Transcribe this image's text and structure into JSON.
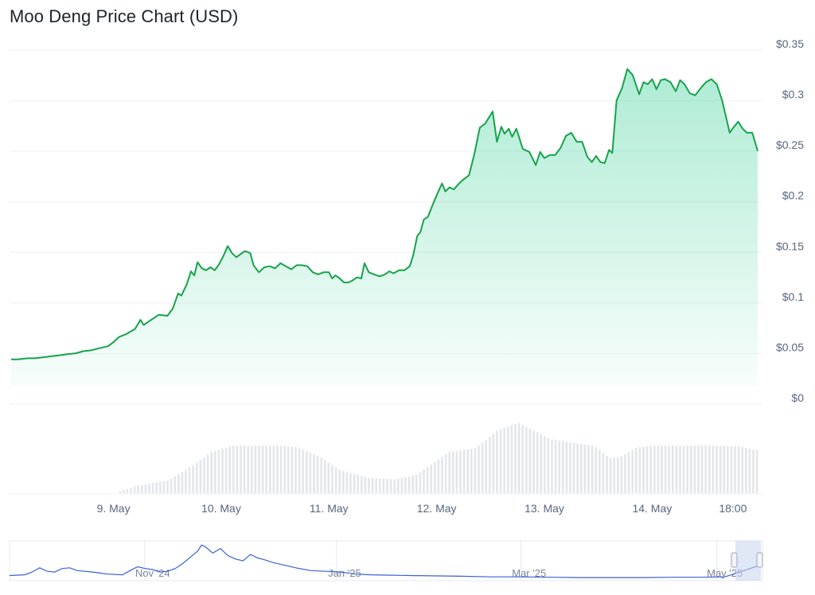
{
  "title": "Moo Deng Price Chart (USD)",
  "colors": {
    "price_line": "#16a34a",
    "area_top": "#16c784",
    "gridline": "#eef0f3",
    "volume_bar": "#e3e6ea",
    "navigator_line": "#3861d5",
    "navigator_handle": "#c7d3ee",
    "text": "#58667e"
  },
  "chart_data": [
    {
      "type": "area",
      "name": "price",
      "ylim": [
        0,
        0.35
      ],
      "y_ticks": [
        {
          "value": 0,
          "label": "$0"
        },
        {
          "value": 0.05,
          "label": "$0.05"
        },
        {
          "value": 0.1,
          "label": "$0.1"
        },
        {
          "value": 0.15,
          "label": "$0.15"
        },
        {
          "value": 0.2,
          "label": "$0.2"
        },
        {
          "value": 0.25,
          "label": "$0.25"
        },
        {
          "value": 0.3,
          "label": "$0.3"
        },
        {
          "value": 0.35,
          "label": "$0.35"
        }
      ],
      "x_ticks": [
        {
          "x": 9.0,
          "label": "9. May"
        },
        {
          "x": 10.0,
          "label": "10. May"
        },
        {
          "x": 11.0,
          "label": "11. May"
        },
        {
          "x": 12.0,
          "label": "12. May"
        },
        {
          "x": 13.0,
          "label": "13. May"
        },
        {
          "x": 14.0,
          "label": "14. May"
        },
        {
          "x": 14.75,
          "label": "18:00"
        }
      ],
      "xlim": [
        8.05,
        14.98
      ],
      "grid": true,
      "points": [
        [
          8.05,
          0.038
        ],
        [
          8.12,
          0.038
        ],
        [
          8.2,
          0.039
        ],
        [
          8.27,
          0.039
        ],
        [
          8.35,
          0.04
        ],
        [
          8.42,
          0.041
        ],
        [
          8.5,
          0.042
        ],
        [
          8.57,
          0.043
        ],
        [
          8.65,
          0.044
        ],
        [
          8.72,
          0.046
        ],
        [
          8.8,
          0.047
        ],
        [
          8.87,
          0.049
        ],
        [
          8.95,
          0.051
        ],
        [
          9.0,
          0.055
        ],
        [
          9.05,
          0.06
        ],
        [
          9.12,
          0.063
        ],
        [
          9.2,
          0.068
        ],
        [
          9.25,
          0.077
        ],
        [
          9.28,
          0.072
        ],
        [
          9.35,
          0.077
        ],
        [
          9.42,
          0.082
        ],
        [
          9.5,
          0.081
        ],
        [
          9.55,
          0.088
        ],
        [
          9.6,
          0.103
        ],
        [
          9.63,
          0.101
        ],
        [
          9.68,
          0.112
        ],
        [
          9.72,
          0.125
        ],
        [
          9.75,
          0.121
        ],
        [
          9.78,
          0.134
        ],
        [
          9.82,
          0.128
        ],
        [
          9.86,
          0.126
        ],
        [
          9.9,
          0.129
        ],
        [
          9.94,
          0.126
        ],
        [
          9.98,
          0.132
        ],
        [
          10.02,
          0.14
        ],
        [
          10.06,
          0.15
        ],
        [
          10.1,
          0.143
        ],
        [
          10.14,
          0.139
        ],
        [
          10.18,
          0.142
        ],
        [
          10.22,
          0.145
        ],
        [
          10.27,
          0.143
        ],
        [
          10.3,
          0.131
        ],
        [
          10.35,
          0.124
        ],
        [
          10.4,
          0.129
        ],
        [
          10.45,
          0.13
        ],
        [
          10.5,
          0.128
        ],
        [
          10.55,
          0.133
        ],
        [
          10.6,
          0.13
        ],
        [
          10.65,
          0.127
        ],
        [
          10.7,
          0.131
        ],
        [
          10.75,
          0.131
        ],
        [
          10.8,
          0.13
        ],
        [
          10.85,
          0.124
        ],
        [
          10.9,
          0.122
        ],
        [
          10.95,
          0.124
        ],
        [
          11.0,
          0.124
        ],
        [
          11.03,
          0.118
        ],
        [
          11.06,
          0.121
        ],
        [
          11.1,
          0.118
        ],
        [
          11.14,
          0.114
        ],
        [
          11.18,
          0.114
        ],
        [
          11.22,
          0.116
        ],
        [
          11.26,
          0.119
        ],
        [
          11.3,
          0.118
        ],
        [
          11.33,
          0.133
        ],
        [
          11.37,
          0.124
        ],
        [
          11.42,
          0.122
        ],
        [
          11.47,
          0.12
        ],
        [
          11.52,
          0.122
        ],
        [
          11.56,
          0.125
        ],
        [
          11.6,
          0.123
        ],
        [
          11.65,
          0.126
        ],
        [
          11.7,
          0.126
        ],
        [
          11.75,
          0.13
        ],
        [
          11.78,
          0.14
        ],
        [
          11.82,
          0.16
        ],
        [
          11.85,
          0.164
        ],
        [
          11.88,
          0.176
        ],
        [
          11.92,
          0.179
        ],
        [
          11.96,
          0.19
        ],
        [
          12.0,
          0.2
        ],
        [
          12.05,
          0.212
        ],
        [
          12.08,
          0.204
        ],
        [
          12.12,
          0.208
        ],
        [
          12.16,
          0.206
        ],
        [
          12.2,
          0.211
        ],
        [
          12.25,
          0.216
        ],
        [
          12.3,
          0.22
        ],
        [
          12.35,
          0.241
        ],
        [
          12.4,
          0.267
        ],
        [
          12.45,
          0.271
        ],
        [
          12.52,
          0.283
        ],
        [
          12.56,
          0.253
        ],
        [
          12.6,
          0.268
        ],
        [
          12.63,
          0.261
        ],
        [
          12.67,
          0.266
        ],
        [
          12.7,
          0.258
        ],
        [
          12.74,
          0.266
        ],
        [
          12.8,
          0.246
        ],
        [
          12.86,
          0.243
        ],
        [
          12.92,
          0.23
        ],
        [
          12.96,
          0.243
        ],
        [
          13.0,
          0.237
        ],
        [
          13.05,
          0.24
        ],
        [
          13.1,
          0.24
        ],
        [
          13.15,
          0.247
        ],
        [
          13.2,
          0.259
        ],
        [
          13.25,
          0.262
        ],
        [
          13.3,
          0.253
        ],
        [
          13.35,
          0.253
        ],
        [
          13.4,
          0.238
        ],
        [
          13.44,
          0.233
        ],
        [
          13.48,
          0.239
        ],
        [
          13.52,
          0.233
        ],
        [
          13.56,
          0.232
        ],
        [
          13.6,
          0.245
        ],
        [
          13.63,
          0.242
        ],
        [
          13.67,
          0.294
        ],
        [
          13.72,
          0.306
        ],
        [
          13.77,
          0.325
        ],
        [
          13.82,
          0.319
        ],
        [
          13.88,
          0.3
        ],
        [
          13.92,
          0.312
        ],
        [
          13.96,
          0.31
        ],
        [
          14.0,
          0.315
        ],
        [
          14.04,
          0.305
        ],
        [
          14.08,
          0.314
        ],
        [
          14.12,
          0.315
        ],
        [
          14.17,
          0.312
        ],
        [
          14.22,
          0.303
        ],
        [
          14.26,
          0.314
        ],
        [
          14.3,
          0.31
        ],
        [
          14.35,
          0.301
        ],
        [
          14.4,
          0.299
        ],
        [
          14.45,
          0.306
        ],
        [
          14.5,
          0.312
        ],
        [
          14.55,
          0.315
        ],
        [
          14.6,
          0.31
        ],
        [
          14.65,
          0.294
        ],
        [
          14.72,
          0.262
        ],
        [
          14.76,
          0.268
        ],
        [
          14.8,
          0.273
        ],
        [
          14.84,
          0.266
        ],
        [
          14.88,
          0.262
        ],
        [
          14.93,
          0.262
        ],
        [
          14.98,
          0.244
        ]
      ]
    },
    {
      "type": "bar",
      "name": "volume",
      "note": "relative heights, 0-1",
      "envelope": [
        [
          9.0,
          0.0
        ],
        [
          9.2,
          0.08
        ],
        [
          9.5,
          0.14
        ],
        [
          9.72,
          0.3
        ],
        [
          9.9,
          0.45
        ],
        [
          10.1,
          0.52
        ],
        [
          10.3,
          0.52
        ],
        [
          10.55,
          0.52
        ],
        [
          10.7,
          0.5
        ],
        [
          10.9,
          0.4
        ],
        [
          11.1,
          0.25
        ],
        [
          11.35,
          0.17
        ],
        [
          11.6,
          0.15
        ],
        [
          11.8,
          0.2
        ],
        [
          11.95,
          0.32
        ],
        [
          12.1,
          0.45
        ],
        [
          12.35,
          0.49
        ],
        [
          12.55,
          0.68
        ],
        [
          12.75,
          0.77
        ],
        [
          12.9,
          0.68
        ],
        [
          13.05,
          0.59
        ],
        [
          13.25,
          0.55
        ],
        [
          13.45,
          0.52
        ],
        [
          13.6,
          0.38
        ],
        [
          13.7,
          0.4
        ],
        [
          13.85,
          0.5
        ],
        [
          14.0,
          0.52
        ],
        [
          14.3,
          0.52
        ],
        [
          14.6,
          0.52
        ],
        [
          14.8,
          0.51
        ],
        [
          14.95,
          0.47
        ]
      ]
    },
    {
      "type": "line",
      "name": "navigator",
      "x_ticks": [
        {
          "pos": 0.19,
          "label": "Nov '24"
        },
        {
          "pos": 0.445,
          "label": "Jan '25"
        },
        {
          "pos": 0.69,
          "label": "Mar '25"
        },
        {
          "pos": 0.95,
          "label": "May '25"
        }
      ],
      "points": [
        [
          0.0,
          0.08
        ],
        [
          0.02,
          0.1
        ],
        [
          0.03,
          0.18
        ],
        [
          0.04,
          0.3
        ],
        [
          0.05,
          0.2
        ],
        [
          0.06,
          0.18
        ],
        [
          0.07,
          0.28
        ],
        [
          0.08,
          0.3
        ],
        [
          0.09,
          0.22
        ],
        [
          0.11,
          0.18
        ],
        [
          0.13,
          0.12
        ],
        [
          0.15,
          0.1
        ],
        [
          0.16,
          0.22
        ],
        [
          0.17,
          0.33
        ],
        [
          0.18,
          0.28
        ],
        [
          0.19,
          0.25
        ],
        [
          0.2,
          0.18
        ],
        [
          0.21,
          0.2
        ],
        [
          0.22,
          0.28
        ],
        [
          0.23,
          0.42
        ],
        [
          0.24,
          0.6
        ],
        [
          0.25,
          0.78
        ],
        [
          0.255,
          0.95
        ],
        [
          0.26,
          0.9
        ],
        [
          0.27,
          0.72
        ],
        [
          0.28,
          0.85
        ],
        [
          0.29,
          0.65
        ],
        [
          0.3,
          0.55
        ],
        [
          0.31,
          0.5
        ],
        [
          0.32,
          0.68
        ],
        [
          0.33,
          0.58
        ],
        [
          0.34,
          0.52
        ],
        [
          0.35,
          0.45
        ],
        [
          0.36,
          0.4
        ],
        [
          0.37,
          0.35
        ],
        [
          0.38,
          0.3
        ],
        [
          0.39,
          0.26
        ],
        [
          0.4,
          0.22
        ],
        [
          0.42,
          0.2
        ],
        [
          0.44,
          0.18
        ],
        [
          0.46,
          0.12
        ],
        [
          0.48,
          0.1
        ],
        [
          0.5,
          0.09
        ],
        [
          0.53,
          0.08
        ],
        [
          0.56,
          0.07
        ],
        [
          0.6,
          0.06
        ],
        [
          0.64,
          0.04
        ],
        [
          0.68,
          0.04
        ],
        [
          0.72,
          0.03
        ],
        [
          0.76,
          0.02
        ],
        [
          0.8,
          0.02
        ],
        [
          0.84,
          0.02
        ],
        [
          0.88,
          0.03
        ],
        [
          0.92,
          0.03
        ],
        [
          0.95,
          0.04
        ],
        [
          0.97,
          0.18
        ],
        [
          1.0,
          0.4
        ]
      ]
    }
  ]
}
